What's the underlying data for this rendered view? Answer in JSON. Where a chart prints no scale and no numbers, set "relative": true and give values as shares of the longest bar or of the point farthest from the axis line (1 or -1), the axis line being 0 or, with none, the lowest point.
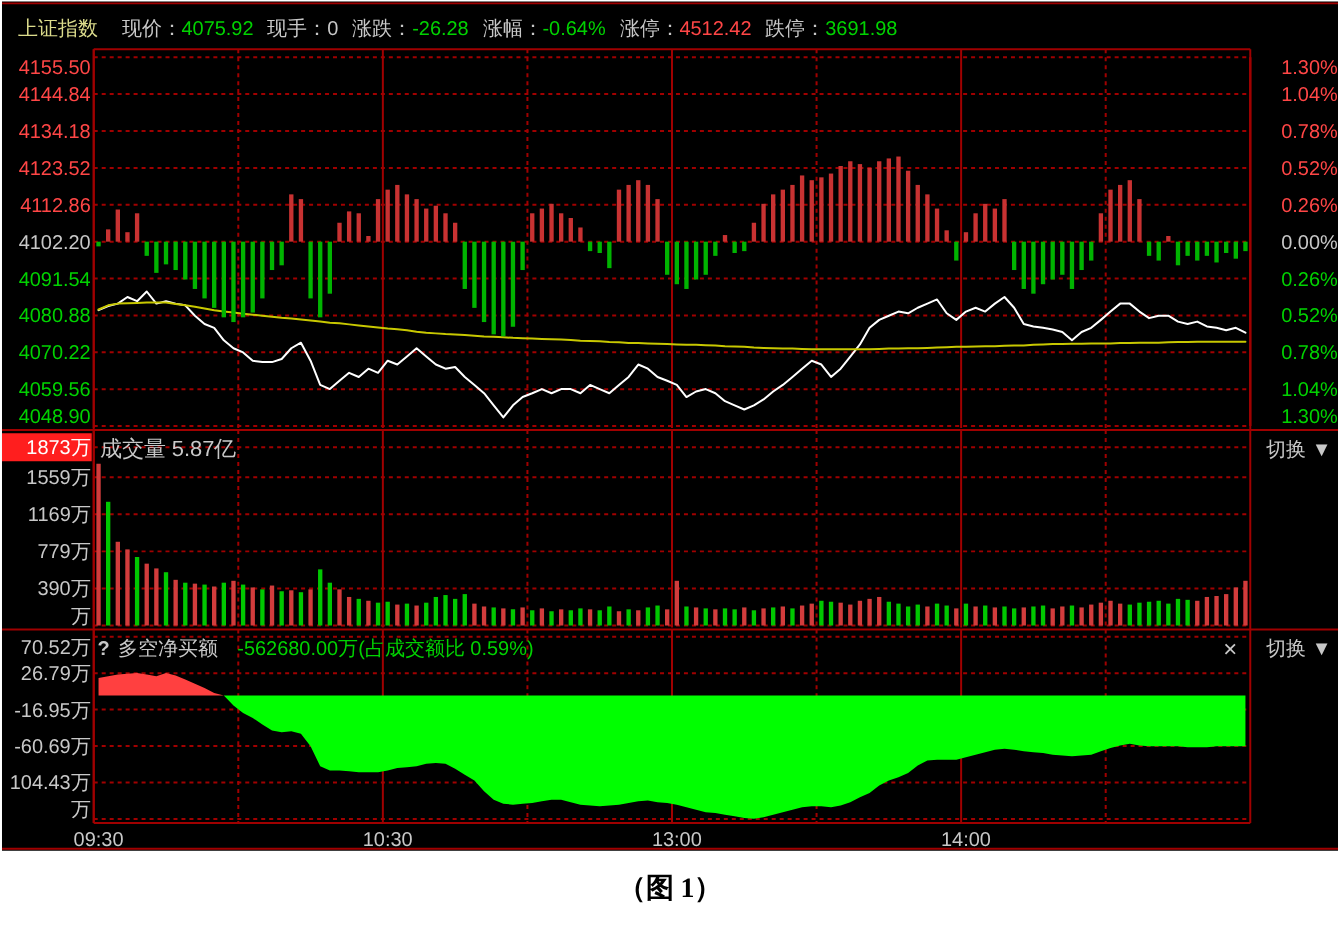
{
  "chart_data": [
    {
      "type": "line",
      "title": "上证指数",
      "annotations": [
        "现价：4075.92",
        "现手：0",
        "涨跌：-26.28",
        "涨幅：-0.64%",
        "涨停：4512.42",
        "跌停：3691.98"
      ],
      "categories": [
        null,
        null,
        null,
        null,
        null,
        null,
        null,
        null,
        null,
        null,
        null,
        null,
        null,
        null,
        null,
        null,
        null,
        null,
        null,
        null,
        null,
        null,
        null,
        null,
        null,
        null,
        null,
        null,
        null,
        null,
        null,
        null,
        null,
        null,
        null,
        null,
        null,
        null,
        null,
        null,
        null,
        null,
        null,
        null,
        null,
        null,
        null,
        null,
        null,
        null,
        null,
        null,
        null,
        null,
        null,
        null,
        null,
        null,
        null,
        null,
        null,
        null,
        null,
        null,
        null,
        null,
        null,
        null,
        null,
        null,
        null,
        null,
        null,
        null,
        null,
        null,
        null,
        null,
        null,
        null,
        null,
        null,
        null,
        null,
        null,
        null,
        null,
        null,
        null,
        null,
        null,
        null,
        null,
        null,
        null,
        null,
        null,
        null,
        null,
        null,
        null,
        null,
        null,
        null,
        null,
        null,
        null,
        null,
        null,
        null,
        null,
        null,
        null,
        null,
        null,
        null,
        null,
        null,
        null,
        null
      ],
      "ylim": [
        4048.9,
        4155.5
      ],
      "yticks": [
        {
          "value": 4048.9,
          "label": "4048.90"
        },
        4059.56,
        4070.22,
        4080.88,
        4091.54,
        {
          "value": 4102.2,
          "label": "4102.20"
        },
        4112.86,
        4123.52,
        4134.18,
        4144.84,
        {
          "value": 4155.5,
          "label": "4155.50"
        }
      ],
      "y2lim": [
        -1.3,
        1.3
      ],
      "y2ticks": [
        {
          "value": 0,
          "label": "0.00%"
        },
        {
          "value": 0.26,
          "label": "0.26%"
        },
        {
          "value": 0.52,
          "label": "0.52%"
        },
        {
          "value": 0.78,
          "label": "0.78%"
        },
        {
          "value": 1.04,
          "label": "1.04%"
        },
        {
          "value": 1.3,
          "label": "1.30%"
        }
      ],
      "y3lim": [
        1.3,
        -1.3
      ],
      "y3ticks": [
        {
          "value": 1.3,
          "label": "1.30%"
        },
        {
          "value": 1.04,
          "label": "1.04%"
        },
        {
          "value": 0.78,
          "label": "0.78%"
        },
        {
          "value": 0.52,
          "label": "0.52%"
        },
        {
          "value": 0.26,
          "label": "0.26%"
        }
      ],
      "series": [
        {
          "color": "#ffffff",
          "values": [
            4082.4,
            4083.6,
            4084.3,
            4086.2,
            4085.0,
            4087.8,
            4084.3,
            4085.0,
            4084.3,
            4083.8,
            4080.8,
            4078.4,
            4077.3,
            4073.7,
            4071.4,
            4070.2,
            4067.8,
            4067.4,
            4067.4,
            4068.3,
            4071.4,
            4073.0,
            4067.8,
            4060.8,
            4059.6,
            4062.0,
            4064.3,
            4063.1,
            4065.5,
            4064.3,
            4067.8,
            4066.7,
            4069.0,
            4071.4,
            4069.0,
            4066.7,
            4065.5,
            4066.0,
            4063.1,
            4060.8,
            4058.4,
            4054.9,
            4051.4,
            4054.9,
            4057.3,
            4058.4,
            4059.6,
            4058.4,
            4059.6,
            4059.6,
            4058.4,
            4060.8,
            4059.6,
            4058.4,
            4060.8,
            4063.1,
            4066.7,
            4065.5,
            4063.1,
            4062.0,
            4060.8,
            4057.3,
            4058.9,
            4059.6,
            4058.4,
            4056.1,
            4054.9,
            4053.7,
            4054.9,
            4056.6,
            4058.9,
            4060.8,
            4063.1,
            4065.5,
            4067.8,
            4066.7,
            4063.1,
            4065.5,
            4069.0,
            4072.5,
            4077.3,
            4079.6,
            4080.8,
            4082.0,
            4081.5,
            4083.1,
            4084.3,
            4085.5,
            4081.5,
            4079.6,
            4082.0,
            4083.1,
            4082.0,
            4084.3,
            4086.2,
            4083.1,
            4078.4,
            4077.7,
            4077.3,
            4076.8,
            4076.1,
            4073.7,
            4076.1,
            4077.3,
            4079.6,
            4082.0,
            4084.3,
            4084.3,
            4082.0,
            4080.1,
            4080.8,
            4080.8,
            4079.1,
            4078.4,
            4079.1,
            4077.7,
            4077.3,
            4076.6,
            4077.3,
            4075.9
          ]
        },
        {
          "color": "#c8c800",
          "values": [
            4082.6,
            4083.8,
            4084.3,
            4084.4,
            4084.5,
            4084.6,
            4084.6,
            4084.6,
            4084.2,
            4083.8,
            4083.4,
            4082.9,
            4082.4,
            4082.0,
            4081.7,
            4081.4,
            4081.1,
            4080.8,
            4080.5,
            4080.2,
            4080.0,
            4079.7,
            4079.4,
            4079.1,
            4078.8,
            4078.6,
            4078.3,
            4078.0,
            4077.7,
            4077.4,
            4077.1,
            4076.9,
            4076.6,
            4076.2,
            4075.9,
            4075.7,
            4075.5,
            4075.4,
            4075.2,
            4075.0,
            4074.8,
            4074.7,
            4074.6,
            4074.4,
            4074.3,
            4074.2,
            4074.1,
            4074.0,
            4073.9,
            4073.8,
            4073.6,
            4073.5,
            4073.4,
            4073.2,
            4073.1,
            4072.9,
            4072.9,
            4072.8,
            4072.7,
            4072.6,
            4072.5,
            4072.4,
            4072.4,
            4072.3,
            4072.2,
            4072.0,
            4071.9,
            4071.8,
            4071.6,
            4071.5,
            4071.4,
            4071.3,
            4071.3,
            4071.2,
            4071.1,
            4071.1,
            4071.1,
            4071.1,
            4071.1,
            4071.1,
            4071.1,
            4071.2,
            4071.3,
            4071.3,
            4071.4,
            4071.4,
            4071.5,
            4071.6,
            4071.7,
            4071.8,
            4071.8,
            4071.9,
            4072.0,
            4072.0,
            4072.1,
            4072.2,
            4072.2,
            4072.4,
            4072.5,
            4072.6,
            4072.6,
            4072.7,
            4072.7,
            4072.8,
            4072.8,
            4072.8,
            4072.9,
            4072.9,
            4073.0,
            4073.0,
            4073.0,
            4073.1,
            4073.2,
            4073.2,
            4073.3,
            4073.3,
            4073.3,
            4073.3,
            4073.3,
            4073.3
          ]
        }
      ],
      "grid": true,
      "tick_labels": "y"
    },
    {
      "type": "bar",
      "relative": true,
      "tick_labels": false,
      "categories": [
        null,
        null,
        null,
        null,
        null,
        null,
        null,
        null,
        null,
        null,
        null,
        null,
        null,
        null,
        null,
        null,
        null,
        null,
        null,
        null,
        null,
        null,
        null,
        null,
        null,
        null,
        null,
        null,
        null,
        null,
        null,
        null,
        null,
        null,
        null,
        null,
        null,
        null,
        null,
        null,
        null,
        null,
        null,
        null,
        null,
        null,
        null,
        null,
        null,
        null,
        null,
        null,
        null,
        null,
        null,
        null,
        null,
        null,
        null,
        null,
        null,
        null,
        null,
        null,
        null,
        null,
        null,
        null,
        null,
        null,
        null,
        null,
        null,
        null,
        null,
        null,
        null,
        null,
        null,
        null,
        null,
        null,
        null,
        null,
        null,
        null,
        null,
        null,
        null,
        null,
        null,
        null,
        null,
        null,
        null,
        null,
        null,
        null,
        null,
        null,
        null,
        null,
        null,
        null,
        null,
        null,
        null,
        null,
        null,
        null,
        null,
        null,
        null,
        null,
        null,
        null,
        null,
        null,
        null,
        null
      ],
      "values": [
        -0.05,
        0.13,
        0.34,
        0.1,
        0.3,
        -0.15,
        -0.33,
        -0.24,
        -0.3,
        -0.4,
        -0.5,
        -0.6,
        -0.7,
        -0.8,
        -0.85,
        -0.8,
        -0.75,
        -0.6,
        -0.3,
        -0.25,
        0.5,
        0.45,
        -0.6,
        -0.8,
        -0.55,
        0.2,
        0.32,
        0.3,
        0.06,
        0.45,
        0.55,
        0.6,
        0.5,
        0.45,
        0.35,
        0.38,
        0.3,
        0.2,
        -0.5,
        -0.7,
        -0.85,
        -0.98,
        -1,
        -0.9,
        -0.3,
        0.3,
        0.35,
        0.4,
        0.3,
        0.25,
        0.15,
        -0.1,
        -0.12,
        -0.28,
        0.55,
        0.6,
        0.65,
        0.6,
        0.45,
        -0.35,
        -0.45,
        -0.5,
        -0.4,
        -0.35,
        -0.15,
        0.07,
        -0.12,
        -0.1,
        0.2,
        0.4,
        0.5,
        0.55,
        0.6,
        0.7,
        0.65,
        0.68,
        0.72,
        0.8,
        0.85,
        0.82,
        0.78,
        0.85,
        0.88,
        0.9,
        0.75,
        0.6,
        0.5,
        0.35,
        0.12,
        -0.2,
        0.1,
        0.3,
        0.4,
        0.35,
        0.45,
        -0.3,
        -0.5,
        -0.55,
        -0.45,
        -0.4,
        -0.35,
        -0.5,
        -0.3,
        -0.2,
        0.3,
        0.55,
        0.6,
        0.65,
        0.45,
        -0.15,
        -0.2,
        0.06,
        -0.25,
        -0.15,
        -0.2,
        -0.15,
        -0.22,
        -0.12,
        -0.18,
        -0.1
      ],
      "colors": [
        "#00b400",
        "#c83232",
        "#c83232",
        "#c83232",
        "#c83232",
        "#00b400",
        "#00b400",
        "#00b400",
        "#00b400",
        "#00b400",
        "#00b400",
        "#00b400",
        "#00b400",
        "#00b400",
        "#00b400",
        "#00b400",
        "#00b400",
        "#00b400",
        "#00b400",
        "#00b400",
        "#c83232",
        "#c83232",
        "#00b400",
        "#00b400",
        "#00b400",
        "#c83232",
        "#c83232",
        "#c83232",
        "#c83232",
        "#c83232",
        "#c83232",
        "#c83232",
        "#c83232",
        "#c83232",
        "#c83232",
        "#c83232",
        "#c83232",
        "#c83232",
        "#00b400",
        "#00b400",
        "#00b400",
        "#00b400",
        "#00b400",
        "#00b400",
        "#00b400",
        "#c83232",
        "#c83232",
        "#c83232",
        "#c83232",
        "#c83232",
        "#c83232",
        "#00b400",
        "#00b400",
        "#00b400",
        "#c83232",
        "#c83232",
        "#c83232",
        "#c83232",
        "#c83232",
        "#00b400",
        "#00b400",
        "#00b400",
        "#00b400",
        "#00b400",
        "#00b400",
        "#c83232",
        "#00b400",
        "#00b400",
        "#c83232",
        "#c83232",
        "#c83232",
        "#c83232",
        "#c83232",
        "#c83232",
        "#c83232",
        "#c83232",
        "#c83232",
        "#c83232",
        "#c83232",
        "#c83232",
        "#c83232",
        "#c83232",
        "#c83232",
        "#c83232",
        "#c83232",
        "#c83232",
        "#c83232",
        "#c83232",
        "#c83232",
        "#00b400",
        "#c83232",
        "#c83232",
        "#c83232",
        "#c83232",
        "#c83232",
        "#00b400",
        "#00b400",
        "#00b400",
        "#00b400",
        "#00b400",
        "#00b400",
        "#00b400",
        "#00b400",
        "#00b400",
        "#c83232",
        "#c83232",
        "#c83232",
        "#c83232",
        "#c83232",
        "#00b400",
        "#00b400",
        "#c83232",
        "#00b400",
        "#00b400",
        "#00b400",
        "#00b400",
        "#00b400",
        "#00b400",
        "#00b400",
        "#00b400"
      ]
    },
    {
      "type": "bar",
      "title": "成交量 5.87亿",
      "annotations": [
        "切换 ▼"
      ],
      "categories": [
        null,
        null,
        null,
        null,
        null,
        null,
        null,
        null,
        null,
        null,
        null,
        null,
        null,
        null,
        null,
        null,
        null,
        null,
        null,
        null,
        null,
        null,
        null,
        null,
        null,
        null,
        null,
        null,
        null,
        null,
        null,
        null,
        null,
        null,
        null,
        null,
        null,
        null,
        null,
        null,
        null,
        null,
        null,
        null,
        null,
        null,
        null,
        null,
        null,
        null,
        null,
        null,
        null,
        null,
        null,
        null,
        null,
        null,
        null,
        null,
        null,
        null,
        null,
        null,
        null,
        null,
        null,
        null,
        null,
        null,
        null,
        null,
        null,
        null,
        null,
        null,
        null,
        null,
        null,
        null,
        null,
        null,
        null,
        null,
        null,
        null,
        null,
        null,
        null,
        null,
        null,
        null,
        null,
        null,
        null,
        null,
        null,
        null,
        null,
        null,
        null,
        null,
        null,
        null,
        null,
        null,
        null,
        null,
        null,
        null,
        null,
        null,
        null,
        null,
        null,
        null,
        null,
        null,
        null,
        null
      ],
      "ylim": [
        0,
        1873
      ],
      "yticks": [
        {
          "value": 0,
          "label": "万"
        },
        {
          "value": 390,
          "label": "390万"
        },
        {
          "value": 779,
          "label": "779万"
        },
        {
          "value": 1169,
          "label": "1169万"
        },
        {
          "value": 1559,
          "label": "1559万"
        },
        {
          "value": 1873,
          "label": "1873万"
        }
      ],
      "values": [
        1700,
        1300,
        880,
        800,
        720,
        650,
        600,
        560,
        480,
        450,
        440,
        430,
        410,
        450,
        470,
        430,
        400,
        380,
        420,
        360,
        370,
        350,
        380,
        590,
        450,
        380,
        300,
        280,
        260,
        240,
        250,
        220,
        230,
        210,
        240,
        300,
        320,
        280,
        330,
        230,
        200,
        190,
        180,
        170,
        190,
        160,
        180,
        150,
        170,
        160,
        180,
        170,
        160,
        200,
        150,
        170,
        160,
        190,
        210,
        170,
        470,
        200,
        190,
        180,
        170,
        180,
        170,
        190,
        160,
        180,
        190,
        200,
        180,
        210,
        230,
        260,
        250,
        240,
        220,
        260,
        280,
        300,
        250,
        230,
        200,
        220,
        200,
        230,
        210,
        180,
        230,
        200,
        210,
        190,
        200,
        180,
        190,
        200,
        210,
        180,
        200,
        210,
        190,
        220,
        240,
        260,
        230,
        220,
        240,
        250,
        260,
        230,
        280,
        270,
        260,
        300,
        310,
        330,
        400,
        470
      ],
      "colors": [
        "#d23c3c",
        "#00c800",
        "#d23c3c",
        "#d23c3c",
        "#00c800",
        "#d23c3c",
        "#d23c3c",
        "#00c800",
        "#d23c3c",
        "#00c800",
        "#d23c3c",
        "#00c800",
        "#d23c3c",
        "#00c800",
        "#d23c3c",
        "#00c800",
        "#d23c3c",
        "#00c800",
        "#d23c3c",
        "#00c800",
        "#d23c3c",
        "#00c800",
        "#d23c3c",
        "#00c800",
        "#00c800",
        "#d23c3c",
        "#d23c3c",
        "#00c800",
        "#d23c3c",
        "#00c800",
        "#00c800",
        "#d23c3c",
        "#00c800",
        "#d23c3c",
        "#00c800",
        "#00c800",
        "#00c800",
        "#00c800",
        "#00c800",
        "#d23c3c",
        "#d23c3c",
        "#00c800",
        "#d23c3c",
        "#00c800",
        "#d23c3c",
        "#00c800",
        "#d23c3c",
        "#00c800",
        "#d23c3c",
        "#00c800",
        "#00c800",
        "#d23c3c",
        "#00c800",
        "#00c800",
        "#d23c3c",
        "#00c800",
        "#d23c3c",
        "#00c800",
        "#00c800",
        "#d23c3c",
        "#d23c3c",
        "#00c800",
        "#d23c3c",
        "#00c800",
        "#d23c3c",
        "#00c800",
        "#00c800",
        "#d23c3c",
        "#00c800",
        "#d23c3c",
        "#00c800",
        "#d23c3c",
        "#00c800",
        "#d23c3c",
        "#d23c3c",
        "#00c800",
        "#00c800",
        "#d23c3c",
        "#d23c3c",
        "#d23c3c",
        "#d23c3c",
        "#d23c3c",
        "#00c800",
        "#00c800",
        "#00c800",
        "#00c800",
        "#d23c3c",
        "#00c800",
        "#00c800",
        "#d23c3c",
        "#00c800",
        "#d23c3c",
        "#00c800",
        "#d23c3c",
        "#00c800",
        "#00c800",
        "#d23c3c",
        "#00c800",
        "#00c800",
        "#d23c3c",
        "#d23c3c",
        "#00c800",
        "#d23c3c",
        "#d23c3c",
        "#d23c3c",
        "#d23c3c",
        "#d23c3c",
        "#00c800",
        "#00c800",
        "#00c800",
        "#00c800",
        "#00c800",
        "#00c800",
        "#00c800",
        "#d23c3c",
        "#d23c3c",
        "#d23c3c",
        "#d23c3c",
        "#d23c3c",
        "#d23c3c"
      ],
      "grid": true,
      "tick_labels": "y"
    },
    {
      "type": "area",
      "title": "多空净买额",
      "annotations": [
        "?",
        "-562680.00万(占成交额比 0.59%)",
        "×",
        "切换 ▼",
        "（图 1）"
      ],
      "categories": [
        "09:30",
        null,
        null,
        null,
        null,
        null,
        null,
        null,
        null,
        null,
        null,
        null,
        null,
        null,
        null,
        null,
        null,
        null,
        null,
        null,
        null,
        null,
        null,
        null,
        null,
        null,
        null,
        null,
        null,
        null,
        "10:30",
        null,
        null,
        null,
        null,
        null,
        null,
        null,
        null,
        null,
        null,
        null,
        null,
        null,
        null,
        null,
        null,
        null,
        null,
        null,
        null,
        null,
        null,
        null,
        null,
        null,
        null,
        null,
        null,
        null,
        "13:00",
        null,
        null,
        null,
        null,
        null,
        null,
        null,
        null,
        null,
        null,
        null,
        null,
        null,
        null,
        null,
        null,
        null,
        null,
        null,
        null,
        null,
        null,
        null,
        null,
        null,
        null,
        null,
        null,
        null,
        "14:00",
        null,
        null,
        null,
        null,
        null,
        null,
        null,
        null,
        null,
        null,
        null,
        null,
        null,
        null,
        null,
        null,
        null,
        null,
        null,
        null,
        null,
        null,
        null,
        null,
        null,
        null,
        null,
        null,
        null
      ],
      "ylim": [
        -148.17,
        70.52
      ],
      "yticks": [
        {
          "value": -148.17,
          "label": "万"
        },
        {
          "value": -104.43,
          "label": "104.43万"
        },
        {
          "value": -60.69,
          "label": "-60.69万"
        },
        {
          "value": -16.95,
          "label": "-16.95万"
        },
        {
          "value": 26.79,
          "label": "26.79万"
        },
        {
          "value": 70.52,
          "label": "70.52万"
        }
      ],
      "series": [
        {
          "color": "#ff4040",
          "values": [
            21,
            23,
            25,
            26,
            27,
            25,
            23,
            27,
            24,
            19,
            14,
            9,
            3,
            0,
            null,
            null,
            null,
            null,
            null,
            null,
            null,
            null,
            null,
            null,
            null,
            null,
            null,
            null,
            null,
            null,
            null,
            null,
            null,
            null,
            null,
            null,
            null,
            null,
            null,
            null,
            null,
            null,
            null,
            null,
            null,
            null,
            null,
            null,
            null,
            null,
            null,
            null,
            null,
            null,
            null,
            null,
            null,
            null,
            null,
            null,
            null,
            null,
            null,
            null,
            null,
            null,
            null,
            null,
            null,
            null,
            null,
            null,
            null,
            null,
            null,
            null,
            null,
            null,
            null,
            null,
            null,
            null,
            null,
            null,
            null,
            null,
            null,
            null,
            null,
            null,
            null,
            null,
            null,
            null,
            null,
            null,
            null,
            null,
            null,
            null,
            null,
            null,
            null,
            null,
            null,
            null,
            null,
            null,
            null,
            null,
            null,
            null,
            null,
            null,
            null,
            null,
            null,
            null,
            null,
            null
          ]
        },
        {
          "color": "#00ff00",
          "values": [
            null,
            null,
            null,
            null,
            null,
            null,
            null,
            null,
            null,
            null,
            null,
            null,
            null,
            0,
            -12,
            -21,
            -27,
            -35,
            -42,
            -44,
            -43,
            -46,
            -61,
            -85,
            -90,
            -90,
            -91,
            -92,
            -92,
            -92,
            -90,
            -87,
            -86,
            -85,
            -82,
            -81,
            -82,
            -88,
            -95,
            -102,
            -115,
            -125,
            -130,
            -131,
            -130,
            -129,
            -127,
            -125,
            -125,
            -128,
            -131,
            -132,
            -133,
            -132,
            -131,
            -129,
            -127,
            -126,
            -128,
            -129,
            -131,
            -134,
            -137,
            -140,
            -141,
            -143,
            -145,
            -147,
            -148,
            -146,
            -143,
            -140,
            -137,
            -134,
            -133,
            -133,
            -134,
            -132,
            -128,
            -122,
            -117,
            -108,
            -102,
            -98,
            -93,
            -84,
            -78,
            -77,
            -77,
            -77,
            -74,
            -71,
            -68,
            -65,
            -64,
            -65,
            -67,
            -68,
            -69,
            -71,
            -72,
            -73,
            -72,
            -71,
            -67,
            -63,
            -60,
            -58,
            -60,
            -61,
            -61,
            -61,
            -61,
            -62,
            -62,
            -62,
            -61,
            -61,
            -61,
            -61
          ]
        }
      ],
      "grid": true
    }
  ]
}
